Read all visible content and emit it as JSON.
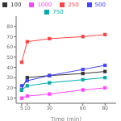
{
  "chart_data": {
    "type": "line",
    "xlabel": "Time (min)",
    "x": [
      5,
      10,
      30,
      60,
      80
    ],
    "series": [
      {
        "name": "100",
        "color": "#333333",
        "marker": "square",
        "values": [
          18,
          30,
          32,
          34,
          36
        ]
      },
      {
        "name": "250",
        "color": "#ff4444",
        "marker": "square",
        "values": [
          45,
          65,
          68,
          70,
          72
        ]
      },
      {
        "name": "500",
        "color": "#4444ff",
        "marker": "square",
        "values": [
          22,
          27,
          32,
          38,
          42
        ]
      },
      {
        "name": "750",
        "color": "#00aaaa",
        "marker": "square",
        "values": [
          18,
          22,
          25,
          28,
          30
        ]
      },
      {
        "name": "1000",
        "color": "#ff44ff",
        "marker": "square",
        "values": [
          10,
          12,
          14,
          18,
          20
        ]
      }
    ],
    "xlim": [
      0,
      90
    ],
    "ylim": [
      5,
      90
    ],
    "xticks": [
      5,
      10,
      30,
      60,
      80
    ],
    "yticks": [
      10,
      20,
      30,
      40,
      50,
      60,
      70,
      80
    ],
    "grid": false,
    "legend": "top"
  }
}
